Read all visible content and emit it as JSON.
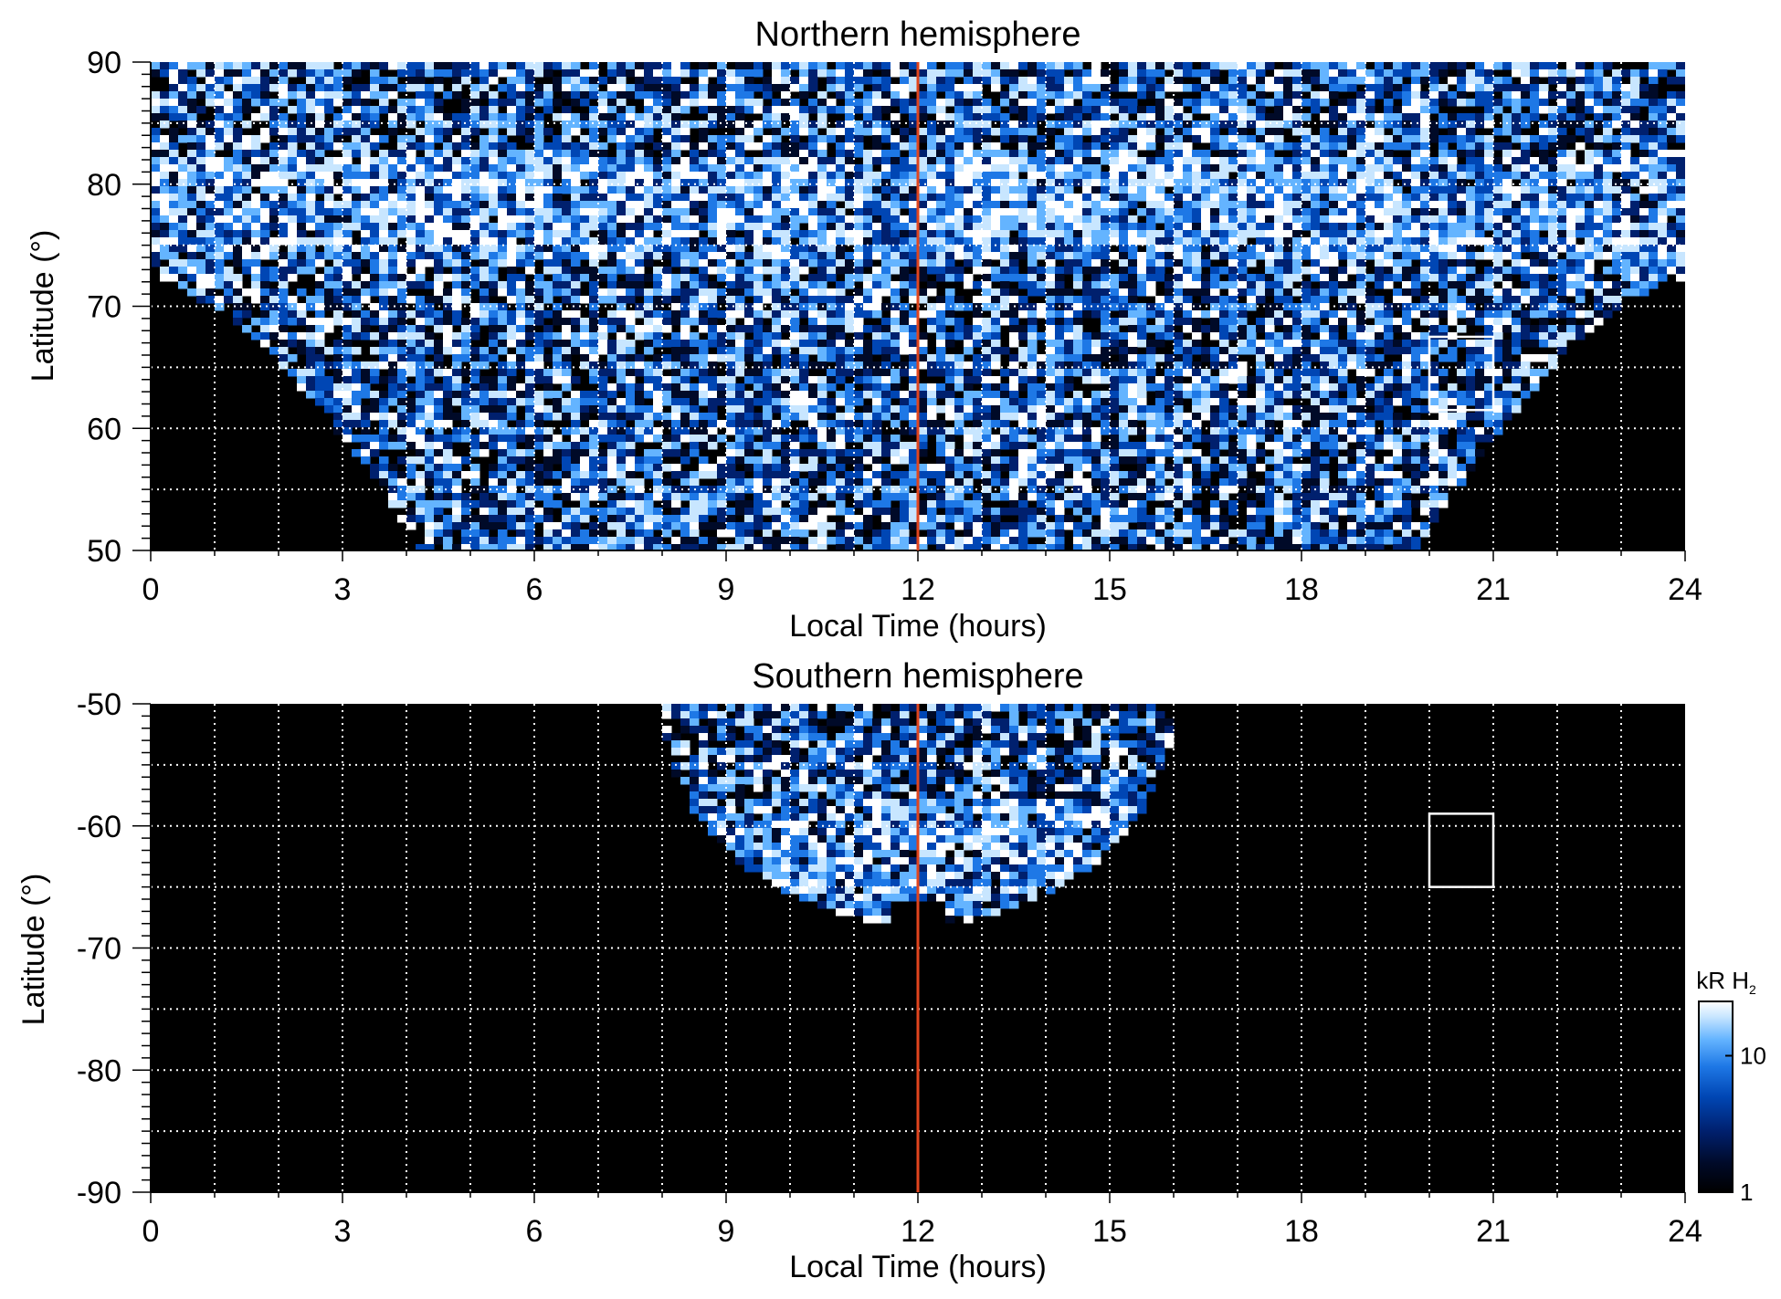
{
  "chart_data": [
    {
      "type": "heatmap",
      "title": "Northern hemisphere",
      "xlabel": "Local Time (hours)",
      "ylabel": "Latitude (°)",
      "xlim": [
        0,
        24
      ],
      "ylim": [
        50,
        90
      ],
      "x_ticks": [
        0,
        3,
        6,
        9,
        12,
        15,
        18,
        21,
        24
      ],
      "y_ticks": [
        50,
        60,
        70,
        80,
        90
      ],
      "x_gridlines": [
        1,
        2,
        3,
        4,
        5,
        6,
        7,
        8,
        9,
        10,
        11,
        12,
        13,
        14,
        15,
        16,
        17,
        18,
        19,
        20,
        21,
        22,
        23
      ],
      "y_gridlines": [
        55,
        60,
        65,
        70,
        75,
        80,
        85
      ],
      "grid": true,
      "grid_style": "dotted",
      "reference_line": {
        "x": 12,
        "color": "#e0451e"
      },
      "box": {
        "x": [
          20,
          21
        ],
        "y": [
          61.5,
          67.5
        ]
      },
      "coverage": "high latitudes at all local times; down to 50° between ~4 h and ~20 h",
      "dark_region": "no data at latitudes below ~72° near midnight (0–4 h and 20–24 h)"
    },
    {
      "type": "heatmap",
      "title": "Southern hemisphere",
      "xlabel": "Local Time (hours)",
      "ylabel": "Latitude (°)",
      "xlim": [
        0,
        24
      ],
      "ylim": [
        -90,
        -50
      ],
      "x_ticks": [
        0,
        3,
        6,
        9,
        12,
        15,
        18,
        21,
        24
      ],
      "y_ticks": [
        -50,
        -60,
        -70,
        -80,
        -90
      ],
      "x_gridlines": [
        1,
        2,
        3,
        4,
        5,
        6,
        7,
        8,
        9,
        10,
        11,
        12,
        13,
        14,
        15,
        16,
        17,
        18,
        19,
        20,
        21,
        22,
        23
      ],
      "y_gridlines": [
        -55,
        -60,
        -65,
        -70,
        -75,
        -80,
        -85
      ],
      "grid": true,
      "grid_style": "dotted",
      "reference_line": {
        "x": 12,
        "color": "#e0451e"
      },
      "box": {
        "x": [
          20,
          21
        ],
        "y": [
          -65,
          -59
        ]
      },
      "coverage": "only from ~8 h to ~16 h local time, latitudes -50° to about -68°",
      "dark_region": "no data elsewhere"
    }
  ],
  "colorbar": {
    "label_main": "kR H",
    "label_sub": "2",
    "ticks": [
      {
        "label": "1",
        "value": 1
      },
      {
        "label": "10",
        "value": 10
      }
    ],
    "range": [
      1,
      25
    ],
    "scale": "log",
    "colormap": [
      "#000000",
      "#000a28",
      "#00206e",
      "#0046b4",
      "#1e78e6",
      "#64b4ff",
      "#c8e6ff",
      "#ffffff"
    ]
  }
}
